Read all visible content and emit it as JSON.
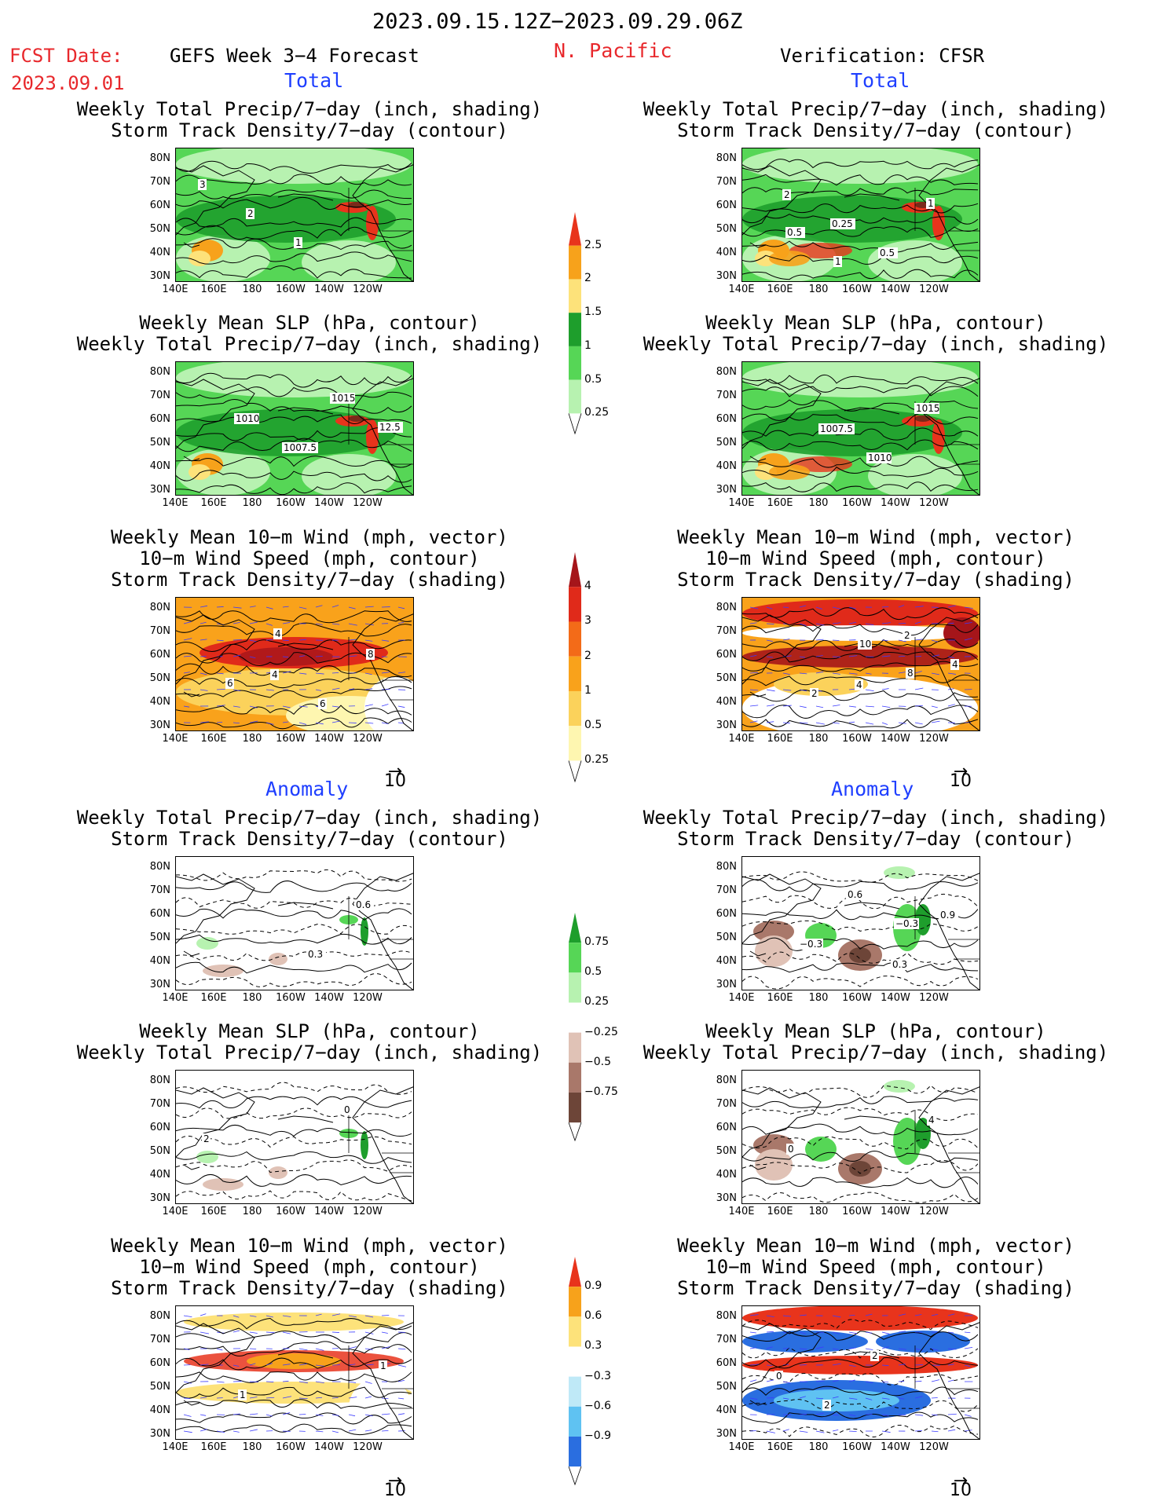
{
  "header": {
    "date_range": "2023.09.15.12Z−2023.09.29.06Z",
    "fcst_label": "FCST Date:",
    "fcst_date": "2023.09.01",
    "model": "GEFS Week 3−4 Forecast",
    "region": "N. Pacific",
    "verification": "Verification: CFSR",
    "total_left": "Total",
    "total_right": "Total",
    "anomaly_left": "Anomaly",
    "anomaly_right": "Anomaly"
  },
  "panels": [
    {
      "id": "p1",
      "title": "Weekly Total Precip/7−day (inch, shading)\nStorm Track Density/7−day (contour)",
      "labels": [
        "3",
        "2",
        "1"
      ],
      "style": "green"
    },
    {
      "id": "p2",
      "title": "Weekly Total Precip/7−day (inch, shading)\nStorm Track Density/7−day (contour)",
      "labels": [
        "2",
        "0.25",
        "0.5",
        "1",
        "0.5",
        "1"
      ],
      "style": "green"
    },
    {
      "id": "p3",
      "title": "Weekly Mean SLP (hPa, contour)\nWeekly Total Precip/7−day (inch, shading)",
      "labels": [
        "1010",
        "1007.5",
        "1015",
        "12.5"
      ],
      "style": "green"
    },
    {
      "id": "p4",
      "title": "Weekly Mean SLP (hPa, contour)\nWeekly Total Precip/7−day (inch, shading)",
      "labels": [
        "1007.5",
        "1010",
        "1015"
      ],
      "style": "green"
    },
    {
      "id": "p5",
      "title": "Weekly Mean 10−m Wind (mph, vector)\n10−m Wind Speed (mph, contour)\nStorm Track Density/7−day (shading)",
      "labels": [
        "4",
        "6",
        "8",
        "6",
        "4"
      ],
      "style": "orange"
    },
    {
      "id": "p6",
      "title": "Weekly Mean 10−m Wind (mph, vector)\n10−m Wind Speed (mph, contour)\nStorm Track Density/7−day (shading)",
      "labels": [
        "4",
        "2",
        "4",
        "2",
        "10",
        "8"
      ],
      "style": "red"
    },
    {
      "id": "p7",
      "title": "Weekly Total Precip/7−day (inch, shading)\nStorm Track Density/7−day (contour)",
      "labels": [
        "0.3",
        "0.6"
      ],
      "style": "anomwhite"
    },
    {
      "id": "p8",
      "title": "Weekly Total Precip/7−day (inch, shading)\nStorm Track Density/7−day (contour)",
      "labels": [
        "0.3",
        "0.9",
        "−0.3",
        "0.6",
        "−0.3"
      ],
      "style": "anombrown"
    },
    {
      "id": "p9",
      "title": "Weekly Mean SLP (hPa, contour)\nWeekly Total Precip/7−day (inch, shading)",
      "labels": [
        "0",
        "2"
      ],
      "style": "anomwhite"
    },
    {
      "id": "p10",
      "title": "Weekly Mean SLP (hPa, contour)\nWeekly Total Precip/7−day (inch, shading)",
      "labels": [
        "4",
        "0"
      ],
      "style": "anombrown"
    },
    {
      "id": "p11",
      "title": "Weekly Mean 10−m Wind (mph, vector)\n10−m Wind Speed (mph, contour)\nStorm Track Density/7−day (shading)",
      "labels": [
        "1",
        "1"
      ],
      "style": "anomorange"
    },
    {
      "id": "p12",
      "title": "Weekly Mean 10−m Wind (mph, vector)\n10−m Wind Speed (mph, contour)\nStorm Track Density/7−day (shading)",
      "labels": [
        "0",
        "2",
        "2"
      ],
      "style": "anomblue"
    }
  ],
  "axes": {
    "lat_labels": [
      "80N",
      "70N",
      "60N",
      "50N",
      "40N",
      "30N"
    ],
    "lon_labels": [
      "140E",
      "160E",
      "180",
      "160W",
      "140W",
      "120W"
    ]
  },
  "colorbars": [
    {
      "id": "cb1",
      "labels": [
        "2.5",
        "2",
        "1.5",
        "1",
        "0.5",
        "0.25"
      ],
      "colors": [
        "#e8341c",
        "#f7a21b",
        "#fde27a",
        "#1e9e2c",
        "#56d656",
        "#b7f2b0"
      ]
    },
    {
      "id": "cb2",
      "labels": [
        "4",
        "3",
        "2",
        "1",
        "0.5",
        "0.25"
      ],
      "colors": [
        "#a5151a",
        "#e02a1a",
        "#f36b18",
        "#f9a21b",
        "#fbd25b",
        "#fef6b0"
      ]
    },
    {
      "id": "cb3",
      "labels": [
        "0.75",
        "0.5",
        "0.25",
        "−0.25",
        "−0.5",
        "−0.75"
      ],
      "colors": [
        "#1e9e2c",
        "#56d656",
        "#b7f2b0",
        "#ffffff",
        "#e0c2b6",
        "#a9786a",
        "#6d4538"
      ]
    },
    {
      "id": "cb4",
      "labels": [
        "0.9",
        "0.6",
        "0.3",
        "−0.3",
        "−0.6",
        "−0.9"
      ],
      "colors": [
        "#e8341c",
        "#f7a21b",
        "#fde27a",
        "#ffffff",
        "#bfe9f7",
        "#5fc2f2",
        "#2a6ee0"
      ]
    }
  ],
  "vector_ref": "10"
}
